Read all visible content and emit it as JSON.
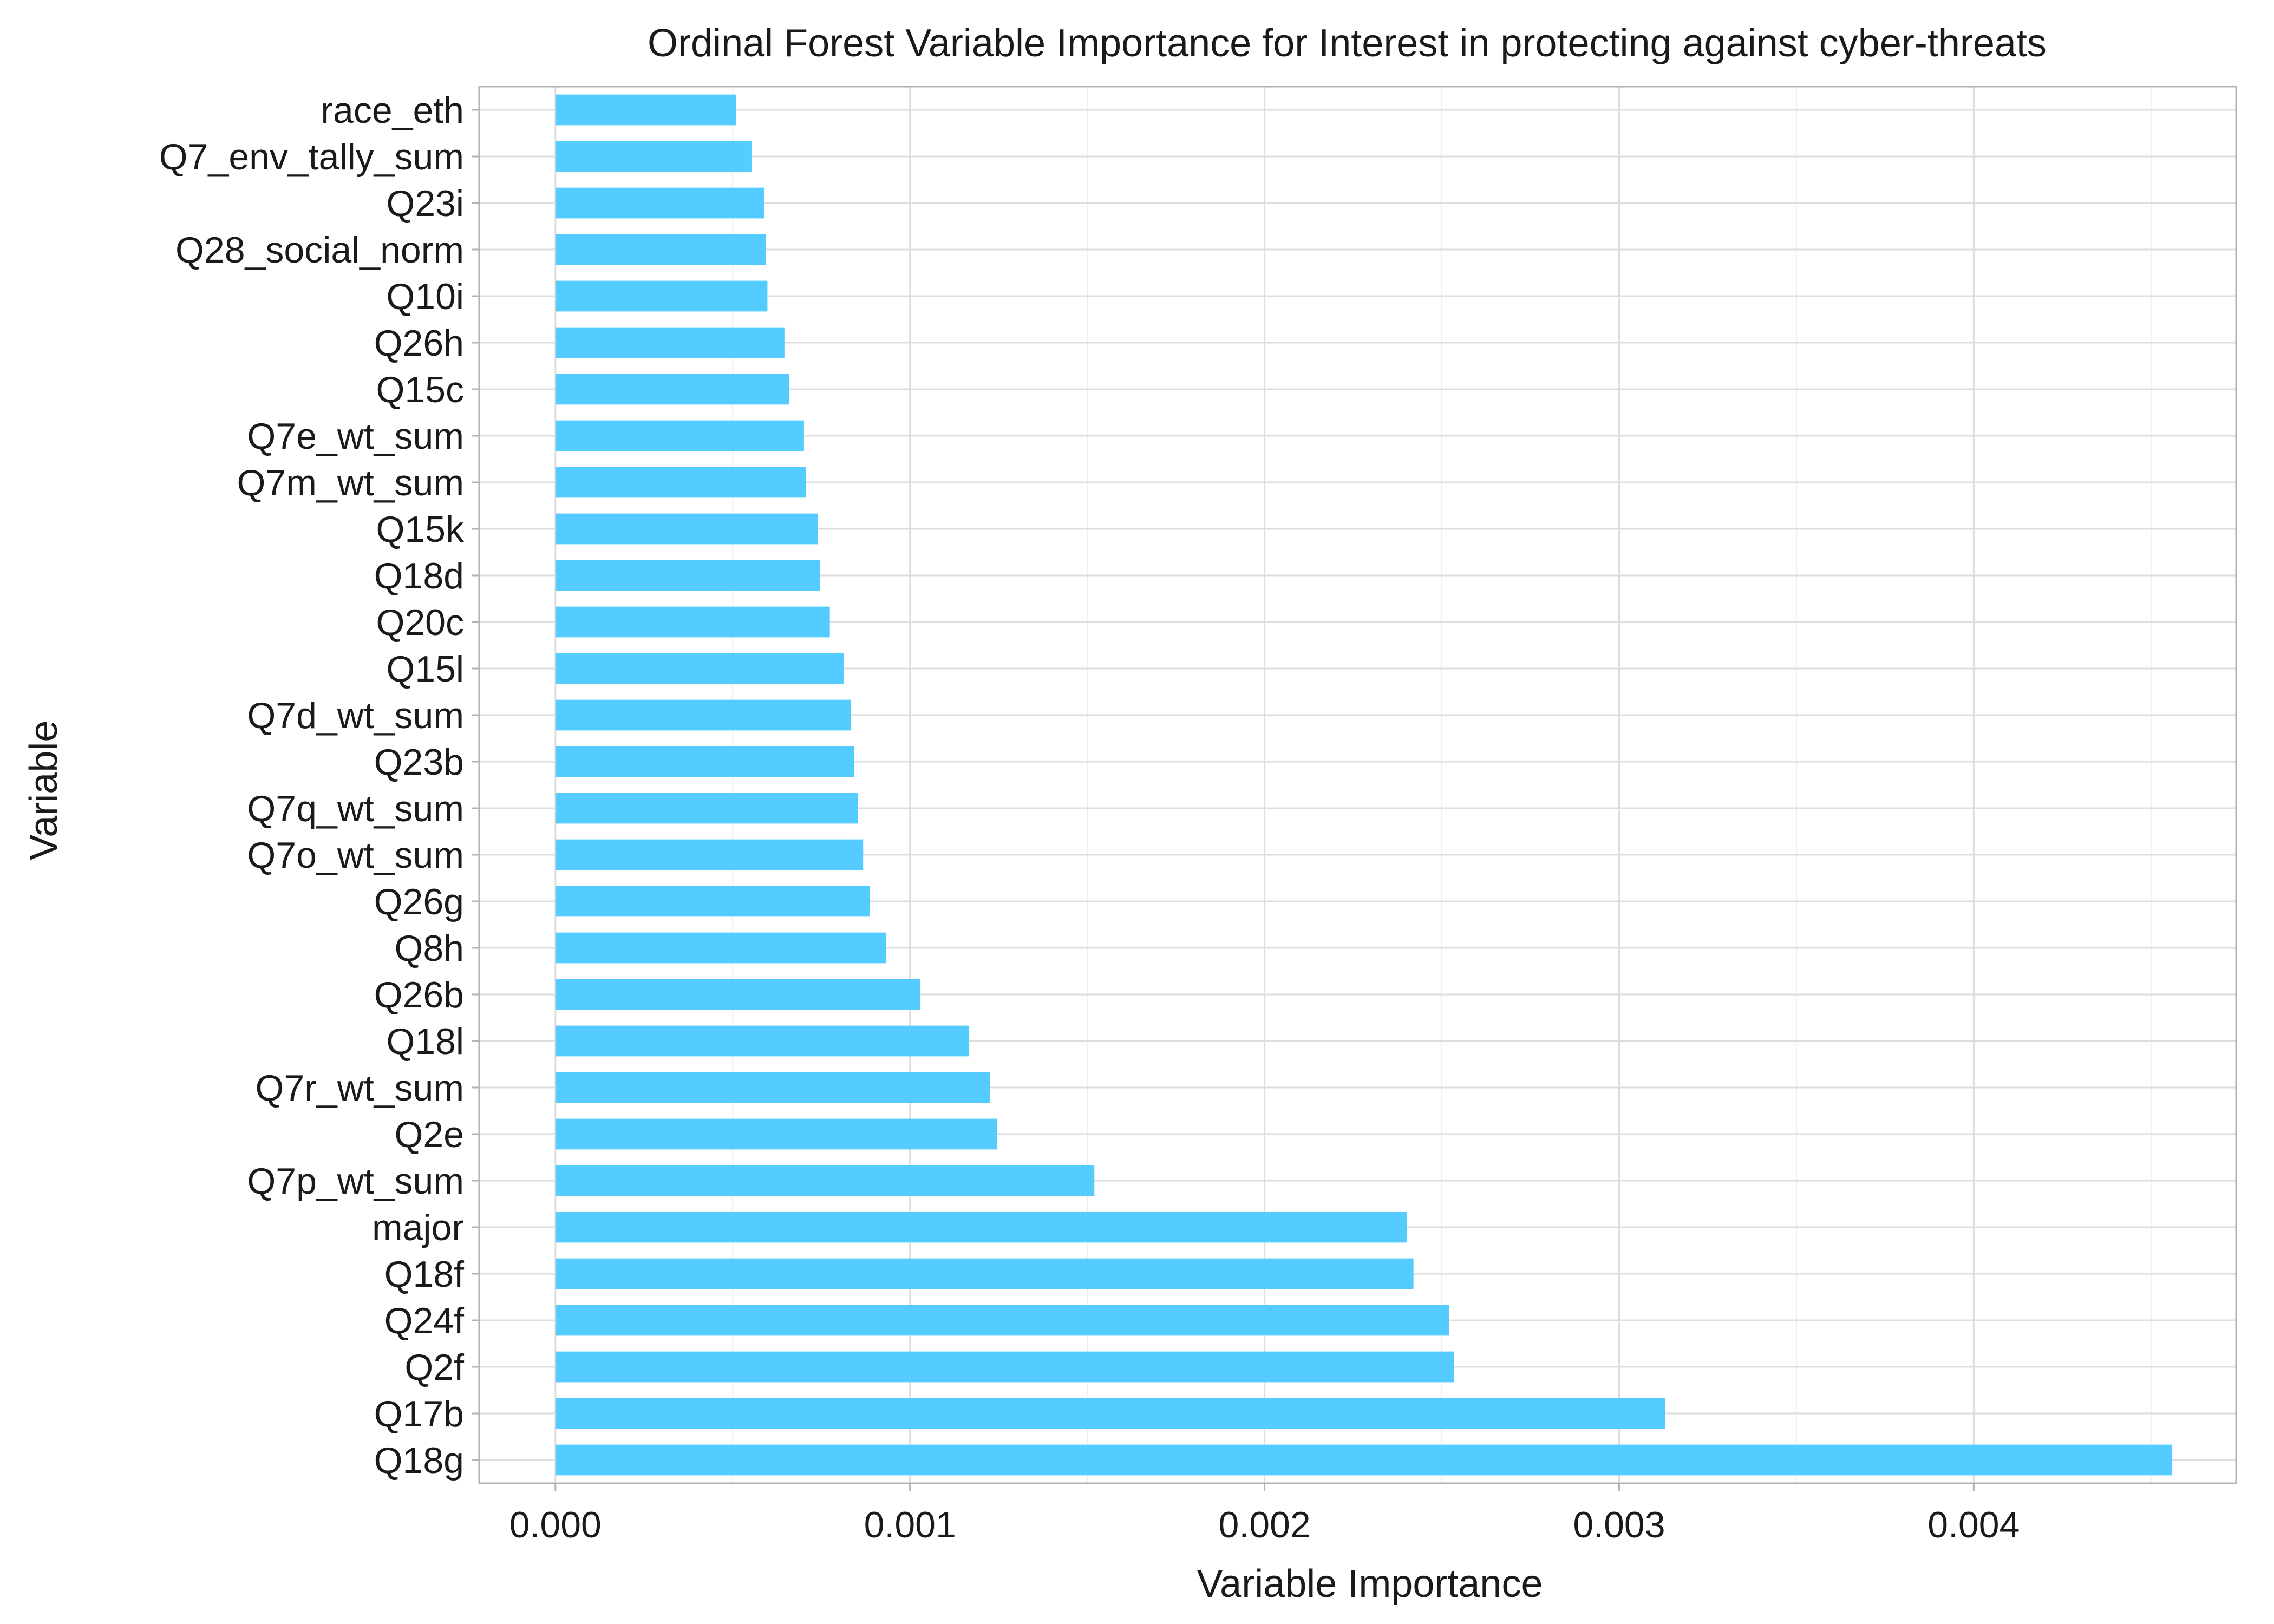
{
  "chart_data": {
    "type": "bar",
    "orientation": "horizontal",
    "title": "Ordinal Forest Variable Importance for Interest in protecting against cyber-threats",
    "xlabel": "Variable Importance",
    "ylabel": "Variable",
    "xlim": [
      -0.000215,
      0.00474
    ],
    "x_ticks": [
      0.0,
      0.001,
      0.002,
      0.003,
      0.004
    ],
    "x_tick_labels": [
      "0.000",
      "0.001",
      "0.002",
      "0.003",
      "0.004"
    ],
    "grid": true,
    "bar_color": "#55CCFF",
    "categories": [
      "race_eth",
      "Q7_env_tally_sum",
      "Q23i",
      "Q28_social_norm",
      "Q10i",
      "Q26h",
      "Q15c",
      "Q7e_wt_sum",
      "Q7m_wt_sum",
      "Q15k",
      "Q18d",
      "Q20c",
      "Q15l",
      "Q7d_wt_sum",
      "Q23b",
      "Q7q_wt_sum",
      "Q7o_wt_sum",
      "Q26g",
      "Q8h",
      "Q26b",
      "Q18l",
      "Q7r_wt_sum",
      "Q2e",
      "Q7p_wt_sum",
      "major",
      "Q18f",
      "Q24f",
      "Q2f",
      "Q17b",
      "Q18g"
    ],
    "values": [
      0.00051,
      0.000553,
      0.000589,
      0.000594,
      0.000598,
      0.000646,
      0.000659,
      0.000701,
      0.000707,
      0.00074,
      0.000747,
      0.000774,
      0.000814,
      0.000834,
      0.000842,
      0.000853,
      0.000868,
      0.000886,
      0.000933,
      0.001028,
      0.001167,
      0.001226,
      0.001245,
      0.00152,
      0.002402,
      0.00242,
      0.00252,
      0.002534,
      0.00313,
      0.00456
    ]
  }
}
